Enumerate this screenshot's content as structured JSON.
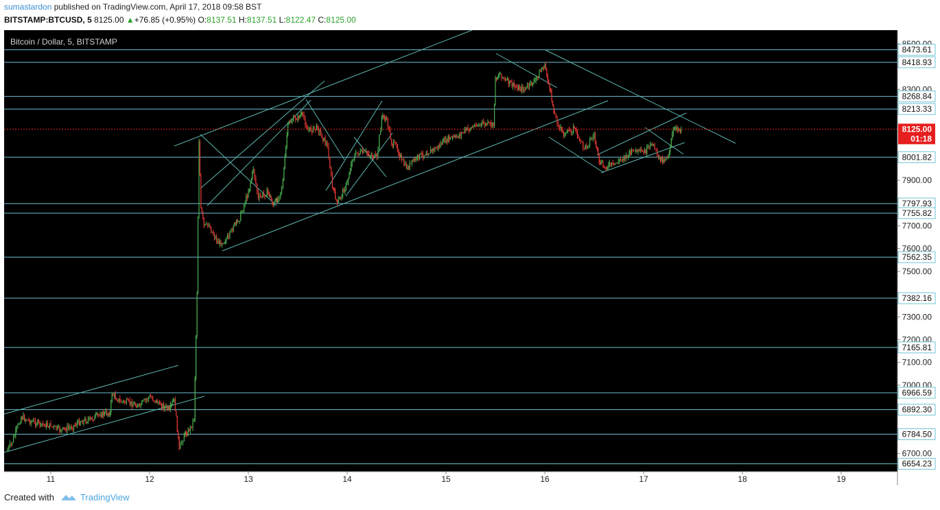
{
  "header": {
    "user": "sumastardon",
    "published": "published on TradingView.com, April 17, 2018 09:58 BST",
    "symbol": "BITSTAMP:BTCUSD, 5",
    "last": "8125.00",
    "change": "+76.85 (+0.95%)",
    "o_label": "O:",
    "o": "8137.51",
    "h_label": "H:",
    "h": "8137.51",
    "l_label": "L:",
    "l": "8122.47",
    "c_label": "C:",
    "c": "8125.00"
  },
  "footer": {
    "created_with": "Created with",
    "brand": "TradingView"
  },
  "colors": {
    "background": "#000000",
    "up": "#4caf50",
    "down": "#e53935",
    "trendline": "#5cb8b2",
    "level": "#6fc3d4",
    "price_tag": "#e61e1e"
  },
  "chart_data": {
    "type": "line",
    "title": "Bitcoin / Dollar, 5, BITSTAMP",
    "ylim": [
      6620,
      8560
    ],
    "x_ticks": [
      "11",
      "12",
      "13",
      "14",
      "15",
      "16",
      "17",
      "18",
      "19"
    ],
    "y_ticks": [
      "8500.00",
      "8300.00",
      "7900.00",
      "7700.00",
      "7600.00",
      "7500.00",
      "7300.00",
      "7200.00",
      "7100.00",
      "7000.00",
      "6700.00"
    ],
    "levels": [
      "8473.61",
      "8418.93",
      "8268.84",
      "8213.33",
      "8001.82",
      "7797.93",
      "7755.82",
      "7562.35",
      "7382.16",
      "7165.81",
      "6966.59",
      "6892.30",
      "6784.50",
      "6654.23"
    ],
    "current": {
      "price": "8125.00",
      "countdown": "01:18"
    },
    "series": [
      {
        "x": [
          10.55,
          10.6,
          10.7,
          10.8,
          10.9,
          11.0,
          11.1,
          11.2,
          11.3,
          11.4,
          11.5,
          11.6,
          11.62,
          11.7,
          11.8,
          11.9,
          12.0,
          12.1,
          12.2,
          12.25,
          12.3,
          12.35,
          12.4,
          12.45,
          12.48,
          12.5,
          12.52,
          12.55,
          12.6,
          12.7,
          12.8,
          12.85,
          12.9,
          13.0,
          13.05,
          13.1,
          13.2,
          13.25,
          13.3,
          13.35,
          13.4,
          13.5,
          13.55,
          13.6,
          13.7,
          13.8,
          13.85,
          13.9,
          14.0,
          14.05,
          14.1,
          14.2,
          14.3,
          14.35,
          14.4,
          14.45,
          14.5,
          14.55,
          14.6,
          14.7,
          14.8,
          14.9,
          15.0,
          15.1,
          15.2,
          15.3,
          15.4,
          15.48,
          15.5,
          15.55,
          15.6,
          15.7,
          15.8,
          15.9,
          16.0,
          16.05,
          16.1,
          16.15,
          16.2,
          16.3,
          16.35,
          16.4,
          16.5,
          16.55,
          16.6,
          16.7,
          16.8,
          16.9,
          17.0,
          17.1,
          17.15,
          17.2,
          17.25,
          17.3,
          17.35,
          17.38
        ],
        "y": [
          6710,
          6740,
          6860,
          6840,
          6830,
          6820,
          6800,
          6815,
          6840,
          6850,
          6870,
          6880,
          6960,
          6930,
          6920,
          6910,
          6950,
          6920,
          6890,
          6940,
          6720,
          6780,
          6800,
          6850,
          7400,
          8070,
          7780,
          7700,
          7700,
          7620,
          7650,
          7700,
          7720,
          7850,
          7950,
          7820,
          7850,
          7790,
          7820,
          7900,
          8150,
          8180,
          8190,
          8120,
          8130,
          8050,
          7870,
          7800,
          7890,
          7990,
          8020,
          8020,
          8000,
          8180,
          8170,
          8060,
          8050,
          7990,
          7950,
          8000,
          8020,
          8040,
          8080,
          8090,
          8120,
          8140,
          8150,
          8140,
          8350,
          8370,
          8340,
          8310,
          8300,
          8340,
          8410,
          8300,
          8190,
          8130,
          8100,
          8130,
          8080,
          8040,
          8100,
          7980,
          7960,
          7970,
          8000,
          8030,
          8020,
          8060,
          8000,
          7990,
          8010,
          8120,
          8125,
          8125
        ]
      }
    ]
  }
}
